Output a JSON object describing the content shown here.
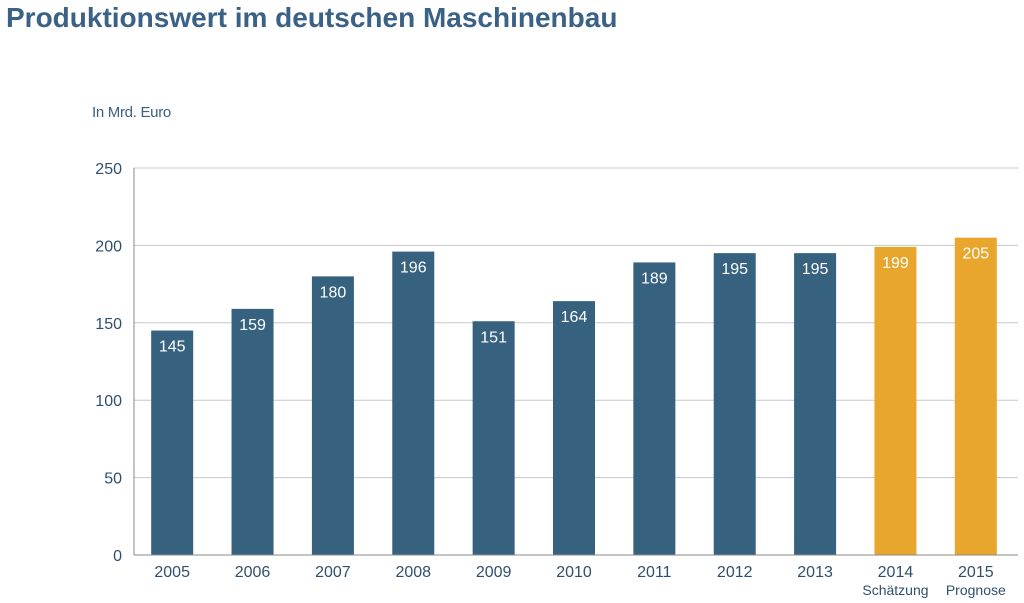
{
  "chart_data": {
    "type": "bar",
    "title": "Produktionswert im deutschen Maschinenbau",
    "ylabel": "In Mrd. Euro",
    "xlabel": "",
    "categories": [
      "2005",
      "2006",
      "2007",
      "2008",
      "2009",
      "2010",
      "2011",
      "2012",
      "2013",
      "2014",
      "2015"
    ],
    "sublabels": [
      "",
      "",
      "",
      "",
      "",
      "",
      "",
      "",
      "",
      "Schätzung",
      "Prognose"
    ],
    "values": [
      145,
      159,
      180,
      196,
      151,
      164,
      189,
      195,
      195,
      199,
      205
    ],
    "bar_colors": [
      "#36617f",
      "#36617f",
      "#36617f",
      "#36617f",
      "#36617f",
      "#36617f",
      "#36617f",
      "#36617f",
      "#36617f",
      "#e8a62c",
      "#e8a62c"
    ],
    "ylim": [
      0,
      250
    ],
    "yticks": [
      0,
      50,
      100,
      150,
      200,
      250
    ],
    "grid": true,
    "legend": "none"
  }
}
